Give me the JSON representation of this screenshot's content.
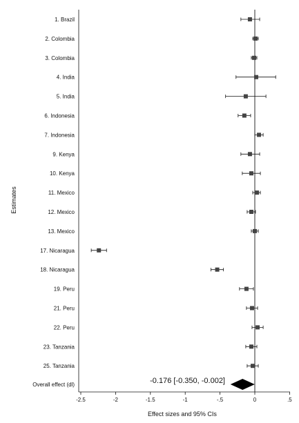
{
  "chart_data": {
    "type": "forest",
    "xlabel": "Effect sizes and 95% CIs",
    "ylabel": "Estimates",
    "xlim": [
      -2.6,
      0.55
    ],
    "xticks": [
      -2.5,
      -2,
      -1.5,
      -1,
      -0.5,
      0,
      0.5
    ],
    "xtick_labels": [
      "-2.5",
      "-2",
      "-1.5",
      "-1",
      "-.5",
      "0",
      ".5"
    ],
    "reference_line": 0,
    "grid": false,
    "studies": [
      {
        "label": "1. Brazil",
        "est": -0.07,
        "lo": -0.2,
        "hi": 0.07
      },
      {
        "label": "2. Colombia",
        "est": 0.01,
        "lo": -0.03,
        "hi": 0.05
      },
      {
        "label": "3. Colombia",
        "est": -0.01,
        "lo": -0.05,
        "hi": 0.03
      },
      {
        "label": "4. India",
        "est": 0.02,
        "lo": -0.27,
        "hi": 0.3
      },
      {
        "label": "5. India",
        "est": -0.13,
        "lo": -0.42,
        "hi": 0.16
      },
      {
        "label": "6. Indonesia",
        "est": -0.15,
        "lo": -0.24,
        "hi": -0.06
      },
      {
        "label": "7. Indonesia",
        "est": 0.06,
        "lo": 0.0,
        "hi": 0.12
      },
      {
        "label": "9. Kenya",
        "est": -0.07,
        "lo": -0.2,
        "hi": 0.07
      },
      {
        "label": "10. Kenya",
        "est": -0.05,
        "lo": -0.18,
        "hi": 0.08
      },
      {
        "label": "11. Mexico",
        "est": 0.03,
        "lo": -0.03,
        "hi": 0.08
      },
      {
        "label": "12. Mexico",
        "est": -0.05,
        "lo": -0.11,
        "hi": 0.01
      },
      {
        "label": "13. Mexico",
        "est": 0.0,
        "lo": -0.05,
        "hi": 0.05
      },
      {
        "label": "17. Nicaragua",
        "est": -2.24,
        "lo": -2.35,
        "hi": -2.13
      },
      {
        "label": "18. Nicaragua",
        "est": -0.54,
        "lo": -0.63,
        "hi": -0.45
      },
      {
        "label": "19. Peru",
        "est": -0.12,
        "lo": -0.22,
        "hi": -0.02
      },
      {
        "label": "21. Peru",
        "est": -0.04,
        "lo": -0.12,
        "hi": 0.04
      },
      {
        "label": "22. Peru",
        "est": 0.04,
        "lo": -0.04,
        "hi": 0.12
      },
      {
        "label": "23. Tanzania",
        "est": -0.05,
        "lo": -0.13,
        "hi": 0.03
      },
      {
        "label": "25. Tanzania",
        "est": -0.03,
        "lo": -0.11,
        "hi": 0.05
      }
    ],
    "overall": {
      "label": "Overall effect (dl)",
      "est": -0.176,
      "lo": -0.35,
      "hi": -0.002,
      "text": "-0.176 [-0.350, -0.002]"
    },
    "colors": {
      "marker": "#444444",
      "line": "#111111",
      "diamond": "#000000"
    }
  }
}
